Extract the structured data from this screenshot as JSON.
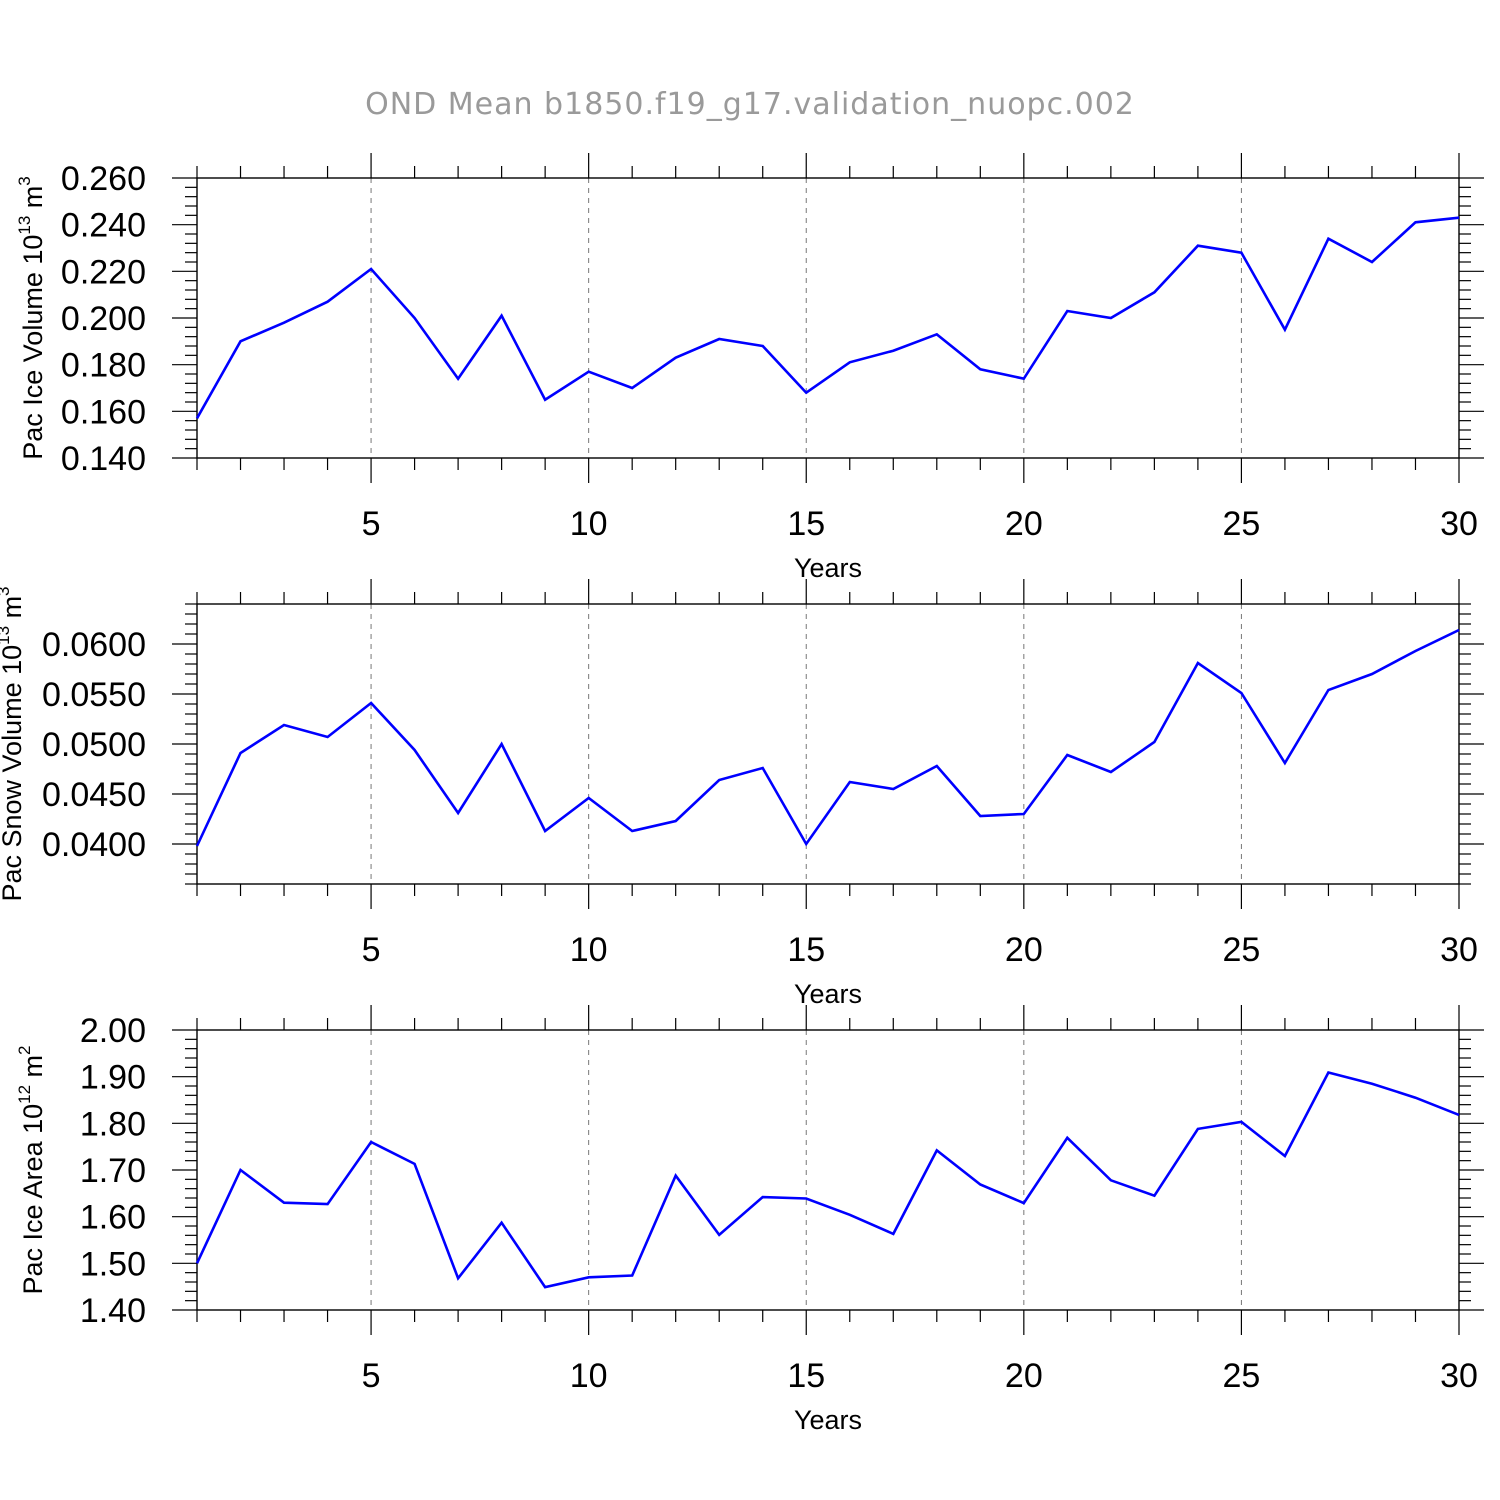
{
  "chart_data": {
    "title": "OND Mean b1850.f19_g17.validation_nuopc.002",
    "panels": [
      {
        "type": "line",
        "ylabel": "Pac Ice Volume 10",
        "ylabel_exp": "13",
        "ylabel_unit": " m",
        "ylabel_unit_exp": "3",
        "xlabel": "Years",
        "xlim": [
          1,
          30
        ],
        "ylim": [
          0.14,
          0.26
        ],
        "yticks": [
          0.14,
          0.16,
          0.18,
          0.2,
          0.22,
          0.24,
          0.26
        ],
        "ytick_labels": [
          "0.140",
          "0.160",
          "0.180",
          "0.200",
          "0.220",
          "0.240",
          "0.260"
        ],
        "xticks": [
          5,
          10,
          15,
          20,
          25,
          30
        ],
        "xtick_labels": [
          "5",
          "10",
          "15",
          "20",
          "25",
          "30"
        ],
        "series": [
          {
            "name": "Pac Ice Volume",
            "color": "#0000ff",
            "x": [
              1,
              2,
              3,
              4,
              5,
              6,
              7,
              8,
              9,
              10,
              11,
              12,
              13,
              14,
              15,
              16,
              17,
              18,
              19,
              20,
              21,
              22,
              23,
              24,
              25,
              26,
              27,
              28,
              29,
              30
            ],
            "values": [
              0.157,
              0.19,
              0.198,
              0.207,
              0.221,
              0.2,
              0.174,
              0.201,
              0.165,
              0.177,
              0.17,
              0.183,
              0.191,
              0.188,
              0.168,
              0.181,
              0.186,
              0.193,
              0.178,
              0.174,
              0.203,
              0.2,
              0.211,
              0.231,
              0.228,
              0.195,
              0.234,
              0.224,
              0.241,
              0.243
            ]
          }
        ]
      },
      {
        "type": "line",
        "ylabel": "Pac Snow Volume 10",
        "ylabel_exp": "13",
        "ylabel_unit": " m",
        "ylabel_unit_exp": "3",
        "xlabel": "Years",
        "xlim": [
          1,
          30
        ],
        "ylim": [
          0.036,
          0.064
        ],
        "yticks": [
          0.04,
          0.045,
          0.05,
          0.055,
          0.06
        ],
        "ytick_labels": [
          "0.0400",
          "0.0450",
          "0.0500",
          "0.0550",
          "0.0600"
        ],
        "xticks": [
          5,
          10,
          15,
          20,
          25,
          30
        ],
        "xtick_labels": [
          "5",
          "10",
          "15",
          "20",
          "25",
          "30"
        ],
        "series": [
          {
            "name": "Pac Snow Volume",
            "color": "#0000ff",
            "x": [
              1,
              2,
              3,
              4,
              5,
              6,
              7,
              8,
              9,
              10,
              11,
              12,
              13,
              14,
              15,
              16,
              17,
              18,
              19,
              20,
              21,
              22,
              23,
              24,
              25,
              26,
              27,
              28,
              29,
              30
            ],
            "values": [
              0.0398,
              0.0491,
              0.0519,
              0.0507,
              0.0541,
              0.0494,
              0.0431,
              0.05,
              0.0413,
              0.0446,
              0.0413,
              0.0423,
              0.0464,
              0.0476,
              0.04,
              0.0462,
              0.0455,
              0.0478,
              0.0428,
              0.043,
              0.0489,
              0.0472,
              0.0502,
              0.0581,
              0.0551,
              0.0481,
              0.0554,
              0.057,
              0.0593,
              0.0614
            ]
          }
        ]
      },
      {
        "type": "line",
        "ylabel": "Pac Ice Area 10",
        "ylabel_exp": "12",
        "ylabel_unit": " m",
        "ylabel_unit_exp": "2",
        "xlabel": "Years",
        "xlim": [
          1,
          30
        ],
        "ylim": [
          1.4,
          2.0
        ],
        "yticks": [
          1.4,
          1.5,
          1.6,
          1.7,
          1.8,
          1.9,
          2.0
        ],
        "ytick_labels": [
          "1.40",
          "1.50",
          "1.60",
          "1.70",
          "1.80",
          "1.90",
          "2.00"
        ],
        "xticks": [
          5,
          10,
          15,
          20,
          25,
          30
        ],
        "xtick_labels": [
          "5",
          "10",
          "15",
          "20",
          "25",
          "30"
        ],
        "series": [
          {
            "name": "Pac Ice Area",
            "color": "#0000ff",
            "x": [
              1,
              2,
              3,
              4,
              5,
              6,
              7,
              8,
              9,
              10,
              11,
              12,
              13,
              14,
              15,
              16,
              17,
              18,
              19,
              20,
              21,
              22,
              23,
              24,
              25,
              26,
              27,
              28,
              29,
              30
            ],
            "values": [
              1.5,
              1.7,
              1.63,
              1.627,
              1.76,
              1.713,
              1.468,
              1.587,
              1.449,
              1.47,
              1.474,
              1.688,
              1.561,
              1.642,
              1.639,
              1.604,
              1.563,
              1.742,
              1.669,
              1.629,
              1.769,
              1.678,
              1.645,
              1.788,
              1.803,
              1.73,
              1.909,
              1.885,
              1.855,
              1.818
            ]
          }
        ]
      }
    ]
  }
}
